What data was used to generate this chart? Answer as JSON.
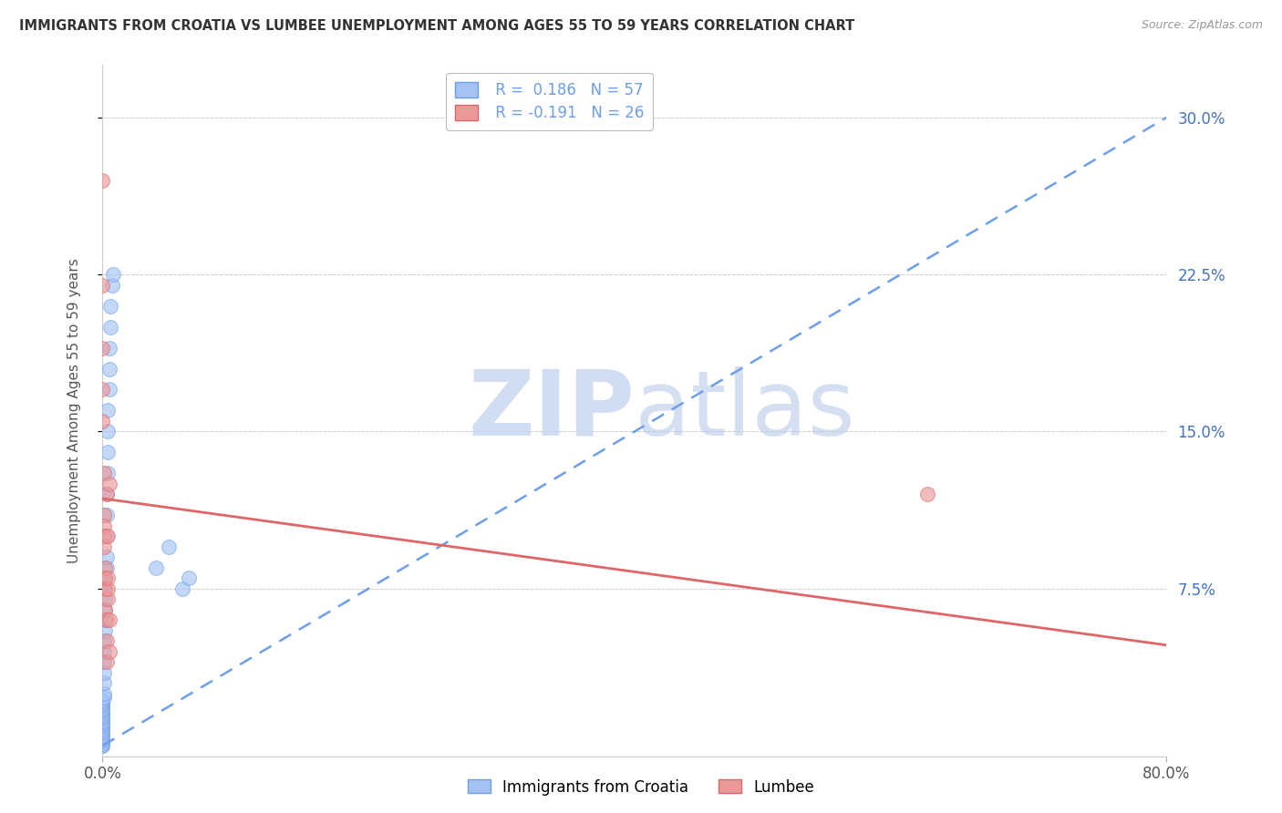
{
  "title": "IMMIGRANTS FROM CROATIA VS LUMBEE UNEMPLOYMENT AMONG AGES 55 TO 59 YEARS CORRELATION CHART",
  "source": "Source: ZipAtlas.com",
  "ylabel": "Unemployment Among Ages 55 to 59 years",
  "legend_label_1": "Immigrants from Croatia",
  "legend_label_2": "Lumbee",
  "r1": 0.186,
  "n1": 57,
  "r2": -0.191,
  "n2": 26,
  "xlim": [
    0.0,
    0.8
  ],
  "ylim": [
    -0.005,
    0.325
  ],
  "ytick_vals": [
    0.075,
    0.15,
    0.225,
    0.3
  ],
  "ytick_labels": [
    "7.5%",
    "15.0%",
    "22.5%",
    "30.0%"
  ],
  "color_blue": "#a4c2f4",
  "color_pink": "#ea9999",
  "trendline_blue_color": "#6d9eeb",
  "trendline_pink_color": "#e06666",
  "watermark_color": "#cfe2ff",
  "background_color": "#ffffff",
  "blue_trendline": [
    0.0,
    0.0,
    0.8,
    0.3
  ],
  "pink_trendline": [
    0.0,
    0.118,
    0.8,
    0.048
  ],
  "blue_points": [
    [
      0.0,
      0.0
    ],
    [
      0.0,
      0.0
    ],
    [
      0.0,
      0.001
    ],
    [
      0.0,
      0.002
    ],
    [
      0.0,
      0.003
    ],
    [
      0.0,
      0.004
    ],
    [
      0.0,
      0.005
    ],
    [
      0.0,
      0.006
    ],
    [
      0.0,
      0.007
    ],
    [
      0.0,
      0.008
    ],
    [
      0.0,
      0.009
    ],
    [
      0.0,
      0.01
    ],
    [
      0.0,
      0.011
    ],
    [
      0.0,
      0.012
    ],
    [
      0.0,
      0.013
    ],
    [
      0.0,
      0.014
    ],
    [
      0.0,
      0.015
    ],
    [
      0.0,
      0.016
    ],
    [
      0.0,
      0.017
    ],
    [
      0.0,
      0.018
    ],
    [
      0.0,
      0.019
    ],
    [
      0.0,
      0.02
    ],
    [
      0.0,
      0.021
    ],
    [
      0.0,
      0.022
    ],
    [
      0.001,
      0.023
    ],
    [
      0.001,
      0.025
    ],
    [
      0.001,
      0.03
    ],
    [
      0.001,
      0.035
    ],
    [
      0.001,
      0.04
    ],
    [
      0.001,
      0.045
    ],
    [
      0.001,
      0.05
    ],
    [
      0.002,
      0.055
    ],
    [
      0.002,
      0.06
    ],
    [
      0.002,
      0.065
    ],
    [
      0.002,
      0.07
    ],
    [
      0.002,
      0.075
    ],
    [
      0.002,
      0.08
    ],
    [
      0.003,
      0.085
    ],
    [
      0.003,
      0.09
    ],
    [
      0.003,
      0.1
    ],
    [
      0.003,
      0.11
    ],
    [
      0.003,
      0.12
    ],
    [
      0.004,
      0.13
    ],
    [
      0.004,
      0.14
    ],
    [
      0.004,
      0.15
    ],
    [
      0.004,
      0.16
    ],
    [
      0.005,
      0.17
    ],
    [
      0.005,
      0.18
    ],
    [
      0.005,
      0.19
    ],
    [
      0.006,
      0.2
    ],
    [
      0.006,
      0.21
    ],
    [
      0.007,
      0.22
    ],
    [
      0.008,
      0.225
    ],
    [
      0.04,
      0.085
    ],
    [
      0.05,
      0.095
    ],
    [
      0.06,
      0.075
    ],
    [
      0.065,
      0.08
    ]
  ],
  "pink_points": [
    [
      0.0,
      0.27
    ],
    [
      0.0,
      0.22
    ],
    [
      0.0,
      0.19
    ],
    [
      0.0,
      0.17
    ],
    [
      0.0,
      0.155
    ],
    [
      0.001,
      0.13
    ],
    [
      0.001,
      0.11
    ],
    [
      0.001,
      0.105
    ],
    [
      0.001,
      0.1
    ],
    [
      0.001,
      0.095
    ],
    [
      0.002,
      0.085
    ],
    [
      0.002,
      0.08
    ],
    [
      0.002,
      0.075
    ],
    [
      0.002,
      0.065
    ],
    [
      0.003,
      0.06
    ],
    [
      0.003,
      0.05
    ],
    [
      0.003,
      0.04
    ],
    [
      0.003,
      0.12
    ],
    [
      0.004,
      0.07
    ],
    [
      0.004,
      0.075
    ],
    [
      0.004,
      0.08
    ],
    [
      0.004,
      0.1
    ],
    [
      0.005,
      0.06
    ],
    [
      0.005,
      0.045
    ],
    [
      0.005,
      0.125
    ],
    [
      0.62,
      0.12
    ]
  ]
}
